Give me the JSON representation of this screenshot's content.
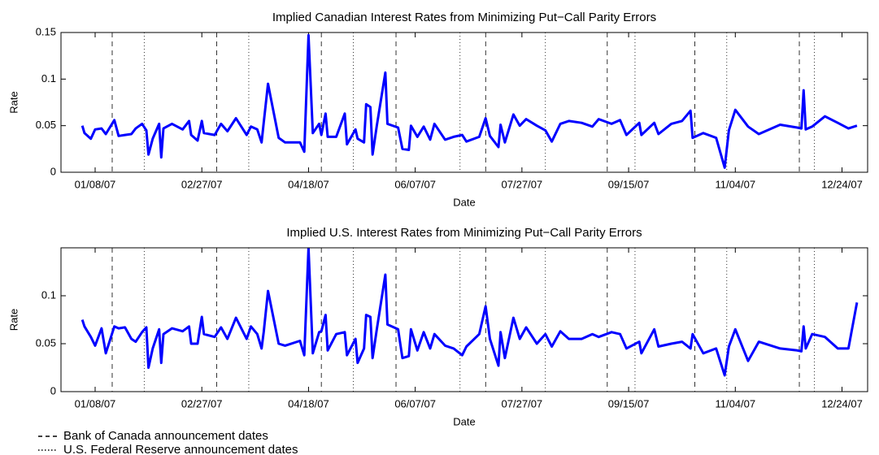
{
  "chart_data": [
    {
      "type": "line",
      "title": "Implied Canadian Interest Rates from Minimizing Put−Call Parity Errors",
      "xlabel": "Date",
      "ylabel": "Rate",
      "color": "#0000ff",
      "xlim": [
        "12/23/06",
        "01/05/08"
      ],
      "xticks": [
        "01/08/07",
        "02/27/07",
        "04/18/07",
        "06/07/07",
        "07/27/07",
        "09/15/07",
        "11/04/07",
        "12/24/07"
      ],
      "ylim": [
        0,
        0.15
      ],
      "yticks": [
        0,
        0.05,
        0.1,
        0.15
      ],
      "x": [
        "01/02/07",
        "01/03/07",
        "01/06/07",
        "01/08/07",
        "01/11/07",
        "01/13/07",
        "01/17/07",
        "01/19/07",
        "01/22/07",
        "01/25/07",
        "01/27/07",
        "01/30/07",
        "02/01/07",
        "02/02/07",
        "02/04/07",
        "02/07/07",
        "02/08/07",
        "02/09/07",
        "02/13/07",
        "02/18/07",
        "02/21/07",
        "02/22/07",
        "02/25/07",
        "02/27/07",
        "02/28/07",
        "03/05/07",
        "03/08/07",
        "03/11/07",
        "03/15/07",
        "03/20/07",
        "03/22/07",
        "03/25/07",
        "03/27/07",
        "03/28/07",
        "03/30/07",
        "04/04/07",
        "04/07/07",
        "04/14/07",
        "04/16/07",
        "04/18/07",
        "04/20/07",
        "04/23/07",
        "04/24/07",
        "04/26/07",
        "04/27/07",
        "05/01/07",
        "05/05/07",
        "05/06/07",
        "05/10/07",
        "05/11/07",
        "05/14/07",
        "05/15/07",
        "05/17/07",
        "05/18/07",
        "05/20/07",
        "05/24/07",
        "05/25/07",
        "05/30/07",
        "06/01/07",
        "06/04/07",
        "06/05/07",
        "06/08/07",
        "06/11/07",
        "06/14/07",
        "06/16/07",
        "06/21/07",
        "06/25/07",
        "06/29/07",
        "07/01/07",
        "07/07/07",
        "07/10/07",
        "07/12/07",
        "07/16/07",
        "07/17/07",
        "07/19/07",
        "07/23/07",
        "07/26/07",
        "07/29/07",
        "08/03/07",
        "08/07/07",
        "08/10/07",
        "08/14/07",
        "08/18/07",
        "08/24/07",
        "08/29/07",
        "09/01/07",
        "09/07/07",
        "09/11/07",
        "09/14/07",
        "09/20/07",
        "09/21/07",
        "09/27/07",
        "09/29/07",
        "10/05/07",
        "10/10/07",
        "10/14/07",
        "10/15/07",
        "10/20/07",
        "10/26/07",
        "10/30/07",
        "11/01/07",
        "11/04/07",
        "11/10/07",
        "11/15/07",
        "11/25/07",
        "12/03/07",
        "12/05/07",
        "12/06/07",
        "12/07/07",
        "12/10/07",
        "12/16/07",
        "12/22/07",
        "12/27/07",
        "12/31/07"
      ],
      "values": [
        0.05,
        0.042,
        0.036,
        0.046,
        0.047,
        0.041,
        0.056,
        0.039,
        0.04,
        0.041,
        0.047,
        0.052,
        0.045,
        0.019,
        0.036,
        0.052,
        0.016,
        0.047,
        0.052,
        0.046,
        0.055,
        0.04,
        0.034,
        0.055,
        0.042,
        0.04,
        0.052,
        0.044,
        0.058,
        0.04,
        0.049,
        0.046,
        0.032,
        0.053,
        0.095,
        0.037,
        0.032,
        0.032,
        0.022,
        0.147,
        0.042,
        0.052,
        0.04,
        0.063,
        0.038,
        0.038,
        0.063,
        0.03,
        0.046,
        0.036,
        0.032,
        0.073,
        0.07,
        0.019,
        0.05,
        0.107,
        0.052,
        0.048,
        0.025,
        0.024,
        0.05,
        0.038,
        0.049,
        0.035,
        0.052,
        0.035,
        0.038,
        0.04,
        0.033,
        0.038,
        0.058,
        0.039,
        0.027,
        0.051,
        0.032,
        0.062,
        0.05,
        0.057,
        0.05,
        0.045,
        0.033,
        0.052,
        0.055,
        0.053,
        0.049,
        0.057,
        0.052,
        0.056,
        0.04,
        0.053,
        0.04,
        0.053,
        0.041,
        0.052,
        0.055,
        0.066,
        0.037,
        0.042,
        0.037,
        0.005,
        0.045,
        0.067,
        0.049,
        0.041,
        0.051,
        0.048,
        0.047,
        0.088,
        0.046,
        0.049,
        0.06,
        0.053,
        0.047,
        0.05
      ]
    },
    {
      "type": "line",
      "title": "Implied U.S. Interest Rates from Minimizing Put−Call Parity Errors",
      "xlabel": "Date",
      "ylabel": "Rate",
      "color": "#0000ff",
      "xlim": [
        "12/23/06",
        "01/05/08"
      ],
      "xticks": [
        "01/08/07",
        "02/27/07",
        "04/18/07",
        "06/07/07",
        "07/27/07",
        "09/15/07",
        "11/04/07",
        "12/24/07"
      ],
      "ylim": [
        0,
        0.15
      ],
      "yticks": [
        0,
        0.05,
        0.1
      ],
      "x": [
        "01/02/07",
        "01/03/07",
        "01/06/07",
        "01/08/07",
        "01/11/07",
        "01/13/07",
        "01/17/07",
        "01/19/07",
        "01/22/07",
        "01/25/07",
        "01/27/07",
        "01/30/07",
        "02/01/07",
        "02/02/07",
        "02/04/07",
        "02/07/07",
        "02/08/07",
        "02/09/07",
        "02/13/07",
        "02/18/07",
        "02/21/07",
        "02/22/07",
        "02/25/07",
        "02/27/07",
        "02/28/07",
        "03/05/07",
        "03/08/07",
        "03/11/07",
        "03/15/07",
        "03/20/07",
        "03/22/07",
        "03/25/07",
        "03/27/07",
        "03/28/07",
        "03/30/07",
        "04/04/07",
        "04/07/07",
        "04/14/07",
        "04/16/07",
        "04/18/07",
        "04/20/07",
        "04/23/07",
        "04/24/07",
        "04/26/07",
        "04/27/07",
        "05/01/07",
        "05/05/07",
        "05/06/07",
        "05/10/07",
        "05/11/07",
        "05/14/07",
        "05/15/07",
        "05/17/07",
        "05/18/07",
        "05/20/07",
        "05/24/07",
        "05/25/07",
        "05/30/07",
        "06/01/07",
        "06/04/07",
        "06/05/07",
        "06/08/07",
        "06/11/07",
        "06/14/07",
        "06/16/07",
        "06/21/07",
        "06/25/07",
        "06/29/07",
        "07/01/07",
        "07/07/07",
        "07/10/07",
        "07/12/07",
        "07/16/07",
        "07/17/07",
        "07/19/07",
        "07/23/07",
        "07/26/07",
        "07/29/07",
        "08/03/07",
        "08/07/07",
        "08/10/07",
        "08/14/07",
        "08/18/07",
        "08/24/07",
        "08/29/07",
        "09/01/07",
        "09/07/07",
        "09/11/07",
        "09/14/07",
        "09/20/07",
        "09/21/07",
        "09/27/07",
        "09/29/07",
        "10/05/07",
        "10/10/07",
        "10/14/07",
        "10/15/07",
        "10/20/07",
        "10/26/07",
        "10/30/07",
        "11/01/07",
        "11/04/07",
        "11/10/07",
        "11/15/07",
        "11/25/07",
        "12/03/07",
        "12/05/07",
        "12/06/07",
        "12/07/07",
        "12/10/07",
        "12/16/07",
        "12/22/07",
        "12/27/07",
        "12/31/07"
      ],
      "values": [
        0.075,
        0.068,
        0.057,
        0.048,
        0.066,
        0.04,
        0.068,
        0.066,
        0.067,
        0.055,
        0.052,
        0.062,
        0.067,
        0.025,
        0.045,
        0.065,
        0.03,
        0.06,
        0.066,
        0.063,
        0.068,
        0.05,
        0.05,
        0.078,
        0.06,
        0.057,
        0.067,
        0.055,
        0.077,
        0.055,
        0.068,
        0.06,
        0.045,
        0.062,
        0.105,
        0.05,
        0.048,
        0.053,
        0.038,
        0.15,
        0.04,
        0.062,
        0.063,
        0.08,
        0.043,
        0.06,
        0.062,
        0.038,
        0.055,
        0.03,
        0.045,
        0.08,
        0.078,
        0.035,
        0.065,
        0.122,
        0.07,
        0.065,
        0.035,
        0.037,
        0.065,
        0.043,
        0.062,
        0.045,
        0.06,
        0.048,
        0.045,
        0.038,
        0.047,
        0.06,
        0.089,
        0.055,
        0.027,
        0.062,
        0.035,
        0.077,
        0.055,
        0.067,
        0.05,
        0.06,
        0.047,
        0.063,
        0.055,
        0.055,
        0.06,
        0.057,
        0.062,
        0.06,
        0.045,
        0.052,
        0.04,
        0.065,
        0.047,
        0.05,
        0.052,
        0.045,
        0.06,
        0.04,
        0.045,
        0.017,
        0.047,
        0.065,
        0.032,
        0.052,
        0.045,
        0.043,
        0.042,
        0.068,
        0.045,
        0.06,
        0.057,
        0.045,
        0.045,
        0.093
      ]
    }
  ],
  "announcements": [
    {
      "name": "Bank of Canada announcement dates",
      "style": "dashed",
      "dates": [
        "01/16/07",
        "03/06/07",
        "04/24/07",
        "05/29/07",
        "07/10/07",
        "09/05/07",
        "10/16/07",
        "12/04/07"
      ]
    },
    {
      "name": "U.S. Federal Reserve announcement dates",
      "style": "dotted",
      "dates": [
        "01/31/07",
        "03/21/07",
        "05/09/07",
        "06/28/07",
        "08/07/07",
        "09/18/07",
        "10/31/07",
        "12/11/07"
      ]
    }
  ]
}
